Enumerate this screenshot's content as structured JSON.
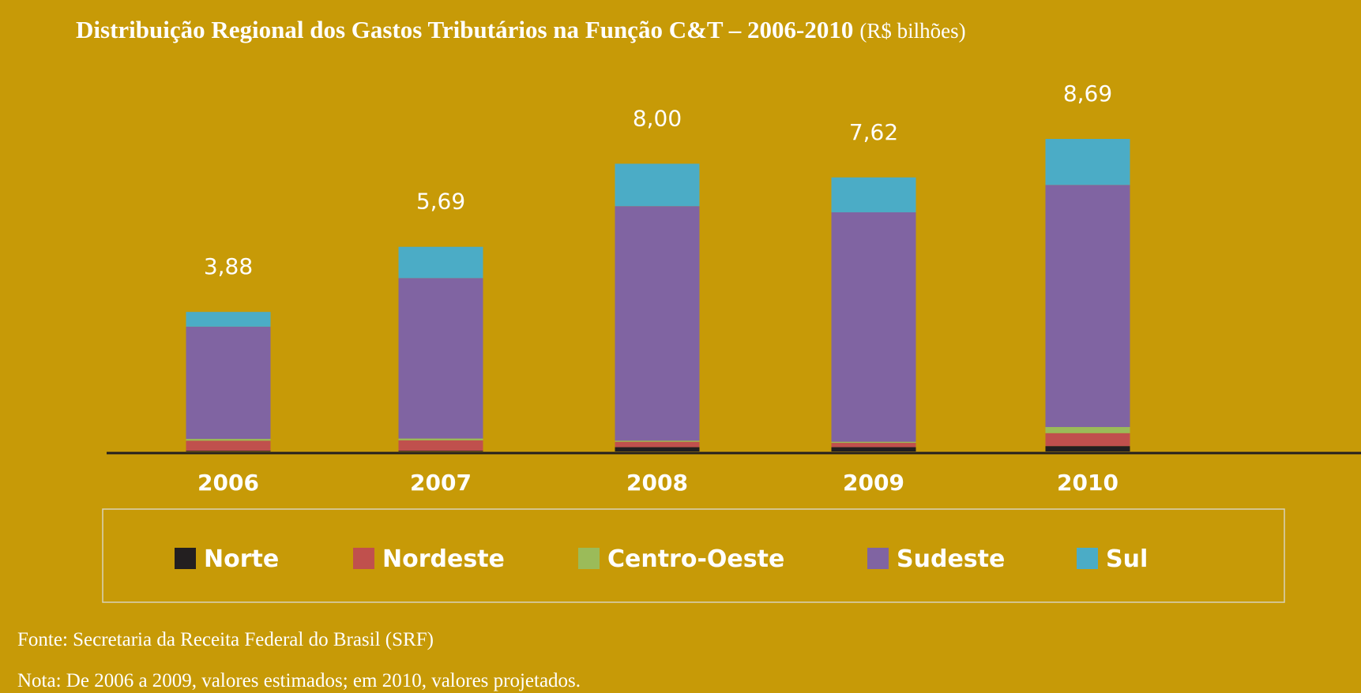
{
  "chart_data": {
    "type": "stacked_bar",
    "title": "Distribuição Regional dos Gastos Tributários na Função C&T – 2006-2010",
    "title_unit": "(R$ bilhões)",
    "categories": [
      "2006",
      "2007",
      "2008",
      "2009",
      "2010"
    ],
    "series": [
      {
        "name": "Norte",
        "color": "#231f20",
        "values": [
          0.02,
          0.02,
          0.12,
          0.12,
          0.15
        ]
      },
      {
        "name": "Nordeste",
        "color": "#c0504d",
        "values": [
          0.28,
          0.29,
          0.15,
          0.12,
          0.36
        ]
      },
      {
        "name": "Centro-Oeste",
        "color": "#9bbb59",
        "values": [
          0.05,
          0.05,
          0.03,
          0.03,
          0.17
        ]
      },
      {
        "name": "Sudeste",
        "color": "#8064a2",
        "values": [
          3.12,
          4.46,
          6.52,
          6.38,
          6.73
        ]
      },
      {
        "name": "Sul",
        "color": "#4bacc6",
        "values": [
          0.41,
          0.87,
          1.18,
          0.97,
          1.28
        ]
      }
    ],
    "totals": {
      "values": [
        3.88,
        5.69,
        8.0,
        7.62,
        8.69
      ],
      "value_labels": [
        "3,88",
        "5,69",
        "8,00",
        "7,62",
        "8,69"
      ]
    },
    "source": "Fonte: Secretaria da Receita Federal do Brasil (SRF)",
    "note": "Nota: De 2006 a 2009, valores estimados; em 2010, valores projetados."
  }
}
